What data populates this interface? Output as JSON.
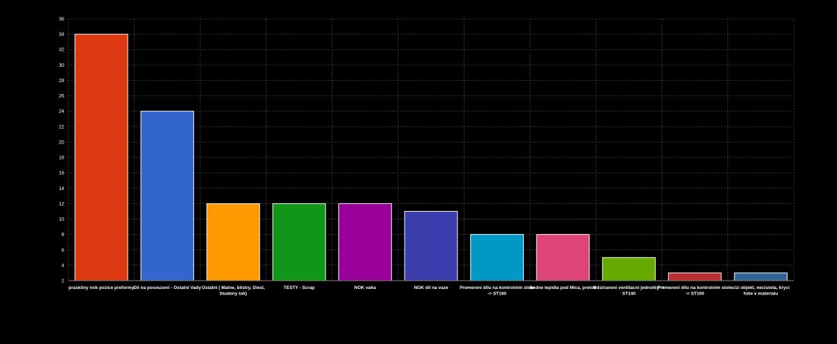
{
  "chart_data": {
    "type": "bar",
    "title": "",
    "xlabel": "",
    "ylabel": "",
    "ylim": [
      2,
      36
    ],
    "yticks": [
      2,
      4,
      6,
      8,
      10,
      12,
      14,
      16,
      18,
      20,
      22,
      24,
      26,
      28,
      30,
      32,
      34,
      36
    ],
    "grid": true,
    "legend": "none",
    "categories": [
      "praskliny nok pozice preformy",
      "Díl na posouzení - Ostatní Vady",
      "Ostatní ( Matne, blistry, Diesl, Studeny tok)",
      "TESTY - Scrap",
      "NOK vaha",
      "NOK díl na vaze",
      "Premereni dílu na kontrolním stole -> ST160",
      "hodne lepidla pod Mica, pretok",
      "Odstranení ventilacní jednotky -> ST140",
      "Premereni dílu na kontrolním stole -> ST160",
      "cizi objekt, necistota, krycí folie v materialu"
    ],
    "values": [
      34,
      24,
      12,
      12,
      12,
      11,
      8,
      8,
      5,
      3,
      3
    ],
    "colors": [
      "#dc3912",
      "#3366cc",
      "#ff9900",
      "#109618",
      "#990099",
      "#3b3eac",
      "#0099c6",
      "#dd4477",
      "#66aa00",
      "#b82e2e",
      "#316395"
    ]
  }
}
